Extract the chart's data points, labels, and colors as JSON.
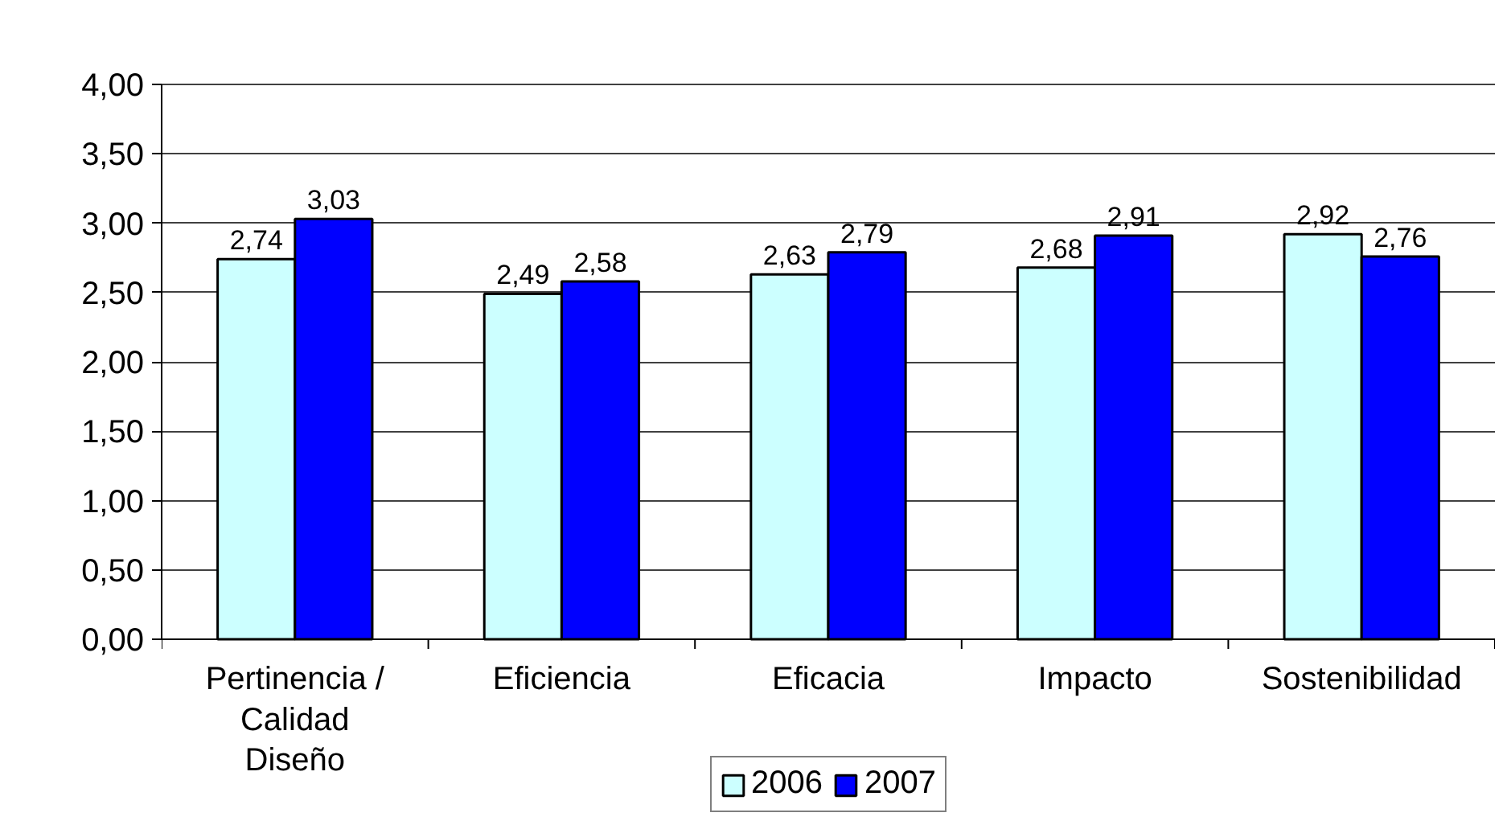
{
  "chart_data": {
    "type": "bar",
    "categories": [
      "Pertinencia / Calidad Diseño",
      "Eficiencia",
      "Eficacia",
      "Impacto",
      "Sostenibilidad"
    ],
    "series": [
      {
        "name": "2006",
        "color": "#ccffff",
        "values": [
          2.74,
          2.49,
          2.63,
          2.68,
          2.92
        ],
        "value_labels": [
          "2,74",
          "2,49",
          "2,63",
          "2,68",
          "2,92"
        ]
      },
      {
        "name": "2007",
        "color": "#0000ff",
        "values": [
          3.03,
          2.58,
          2.79,
          2.91,
          2.76
        ],
        "value_labels": [
          "3,03",
          "2,58",
          "2,79",
          "2,91",
          "2,76"
        ]
      }
    ],
    "ylim": [
      0,
      4
    ],
    "yticks": [
      {
        "value": 0,
        "label": "0,00"
      },
      {
        "value": 0.5,
        "label": "0,50"
      },
      {
        "value": 1,
        "label": "1,00"
      },
      {
        "value": 1.5,
        "label": "1,50"
      },
      {
        "value": 2,
        "label": "2,00"
      },
      {
        "value": 2.5,
        "label": "2,50"
      },
      {
        "value": 3,
        "label": "3,00"
      },
      {
        "value": 3.5,
        "label": "3,50"
      },
      {
        "value": 4,
        "label": "4,00"
      }
    ],
    "grid": "y",
    "legend": "bottom"
  }
}
